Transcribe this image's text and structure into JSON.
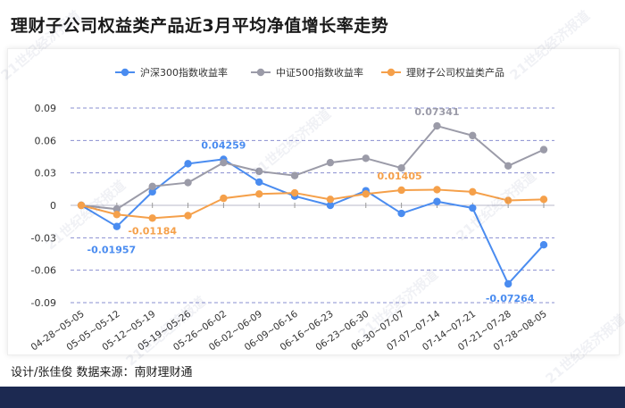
{
  "title": "理财子公司权益类产品近3月平均净值增长率走势",
  "credit": "设计/张佳俊  数据来源：南财理财通",
  "watermark": "21世纪经济报道",
  "chart_data": {
    "type": "line",
    "categories": [
      "04-28~05-05",
      "05-05~05-12",
      "05-12~05-19",
      "05-19~05-26",
      "05-26~06-02",
      "06-02~06-09",
      "06-09~06-16",
      "06-16~06-23",
      "06-23~06-30",
      "06-30~07-07",
      "07-07~07-14",
      "07-14~07-21",
      "07-21~07-28",
      "07-28~08-05"
    ],
    "ylim": [
      -0.09,
      0.09
    ],
    "yticks": [
      "0.09",
      "0.06",
      "0.03",
      "0",
      "-0.03",
      "-0.06",
      "-0.09"
    ],
    "ytick_values": [
      0.09,
      0.06,
      0.03,
      0,
      -0.03,
      -0.06,
      -0.09
    ],
    "grid": true,
    "legend_position": "top",
    "series": [
      {
        "name": "沪深300指数收益率",
        "color": "#4a8cf0",
        "values": [
          0,
          -0.01957,
          0.0125,
          0.0385,
          0.04259,
          0.0215,
          0.0085,
          0.0,
          0.0135,
          -0.0075,
          0.0035,
          -0.0025,
          -0.07264,
          -0.0365
        ]
      },
      {
        "name": "中证500指数收益率",
        "color": "#9b9ba8",
        "values": [
          0,
          -0.0035,
          0.0175,
          0.021,
          0.0395,
          0.0315,
          0.0275,
          0.0395,
          0.0435,
          0.0345,
          0.07341,
          0.0645,
          0.0365,
          0.0515
        ]
      },
      {
        "name": "理财子公司权益类产品",
        "color": "#f5a04a",
        "values": [
          0,
          -0.0085,
          -0.01184,
          -0.0095,
          0.0065,
          0.0105,
          0.0115,
          0.0055,
          0.0105,
          0.01405,
          0.0145,
          0.0125,
          0.0045,
          0.0055
        ]
      }
    ],
    "annotations": [
      {
        "series": 0,
        "index": 1,
        "text": "-0.01957",
        "color": "#4a8cf0"
      },
      {
        "series": 0,
        "index": 4,
        "text": "0.04259",
        "color": "#4a8cf0"
      },
      {
        "series": 0,
        "index": 12,
        "text": "-0.07264",
        "color": "#4a8cf0"
      },
      {
        "series": 1,
        "index": 10,
        "text": "0.07341",
        "color": "#9b9ba8"
      },
      {
        "series": 2,
        "index": 2,
        "text": "-0.01184",
        "color": "#f5a04a"
      },
      {
        "series": 2,
        "index": 9,
        "text": "0.01405",
        "color": "#f5a04a"
      }
    ]
  }
}
